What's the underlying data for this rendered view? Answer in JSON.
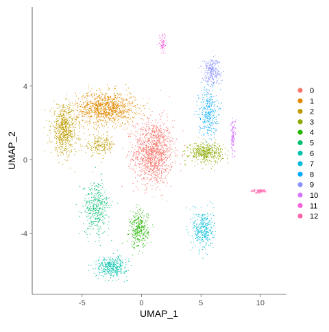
{
  "chart_data": {
    "type": "scatter",
    "title": "",
    "xlabel": "UMAP_1",
    "ylabel": "UMAP_2",
    "xlim": [
      -9.2,
      12.2
    ],
    "ylim": [
      -7.3,
      8.3
    ],
    "x_ticks": [
      -5,
      0,
      5,
      10
    ],
    "x_tick_labels": [
      "-5",
      "0",
      "5",
      "10"
    ],
    "y_ticks": [
      -4,
      0,
      4
    ],
    "y_tick_labels": [
      "-4",
      "0",
      "4"
    ],
    "grid": false,
    "legend_position": "right",
    "point_size": 0.6,
    "series": [
      {
        "name": "0",
        "color": "#F8766D",
        "clusters": [
          {
            "center": [
              1.0,
              0.4
            ],
            "spread": [
              1.5,
              1.6
            ],
            "count": 1300
          }
        ]
      },
      {
        "name": "1",
        "color": "#E18A00",
        "clusters": [
          {
            "center": [
              -3.0,
              2.8
            ],
            "spread": [
              2.3,
              0.8
            ],
            "count": 1050
          }
        ]
      },
      {
        "name": "2",
        "color": "#BE9C00",
        "clusters": [
          {
            "center": [
              -6.5,
              1.6
            ],
            "spread": [
              1.0,
              1.2
            ],
            "count": 650
          },
          {
            "center": [
              -3.5,
              0.8
            ],
            "spread": [
              1.2,
              0.5
            ],
            "count": 200
          }
        ]
      },
      {
        "name": "3",
        "color": "#8CAB00",
        "clusters": [
          {
            "center": [
              5.4,
              0.4
            ],
            "spread": [
              1.3,
              0.5
            ],
            "count": 420
          }
        ]
      },
      {
        "name": "4",
        "color": "#24B700",
        "clusters": [
          {
            "center": [
              -0.2,
              -3.8
            ],
            "spread": [
              0.7,
              0.9
            ],
            "count": 320
          }
        ]
      },
      {
        "name": "5",
        "color": "#00BE70",
        "clusters": [
          {
            "center": [
              -3.8,
              -2.6
            ],
            "spread": [
              1.0,
              1.3
            ],
            "count": 380
          }
        ]
      },
      {
        "name": "6",
        "color": "#00C1AB",
        "clusters": [
          {
            "center": [
              -2.5,
              -5.8
            ],
            "spread": [
              1.2,
              0.5
            ],
            "count": 350
          }
        ]
      },
      {
        "name": "7",
        "color": "#00BBDA",
        "clusters": [
          {
            "center": [
              5.2,
              -3.8
            ],
            "spread": [
              0.8,
              1.0
            ],
            "count": 330
          }
        ]
      },
      {
        "name": "8",
        "color": "#00ACFC",
        "clusters": [
          {
            "center": [
              5.6,
              2.6
            ],
            "spread": [
              0.7,
              1.2
            ],
            "count": 300
          }
        ]
      },
      {
        "name": "9",
        "color": "#8B93FF",
        "clusters": [
          {
            "center": [
              5.9,
              4.8
            ],
            "spread": [
              0.7,
              0.7
            ],
            "count": 260
          }
        ]
      },
      {
        "name": "10",
        "color": "#D575FE",
        "clusters": [
          {
            "center": [
              7.7,
              1.3
            ],
            "spread": [
              0.2,
              0.9
            ],
            "count": 110
          }
        ]
      },
      {
        "name": "11",
        "color": "#F962DD",
        "clusters": [
          {
            "center": [
              1.8,
              6.3
            ],
            "spread": [
              0.3,
              0.5
            ],
            "count": 70
          }
        ]
      },
      {
        "name": "12",
        "color": "#FF65AC",
        "clusters": [
          {
            "center": [
              9.9,
              -1.7
            ],
            "spread": [
              0.6,
              0.1
            ],
            "count": 90
          }
        ]
      }
    ]
  }
}
